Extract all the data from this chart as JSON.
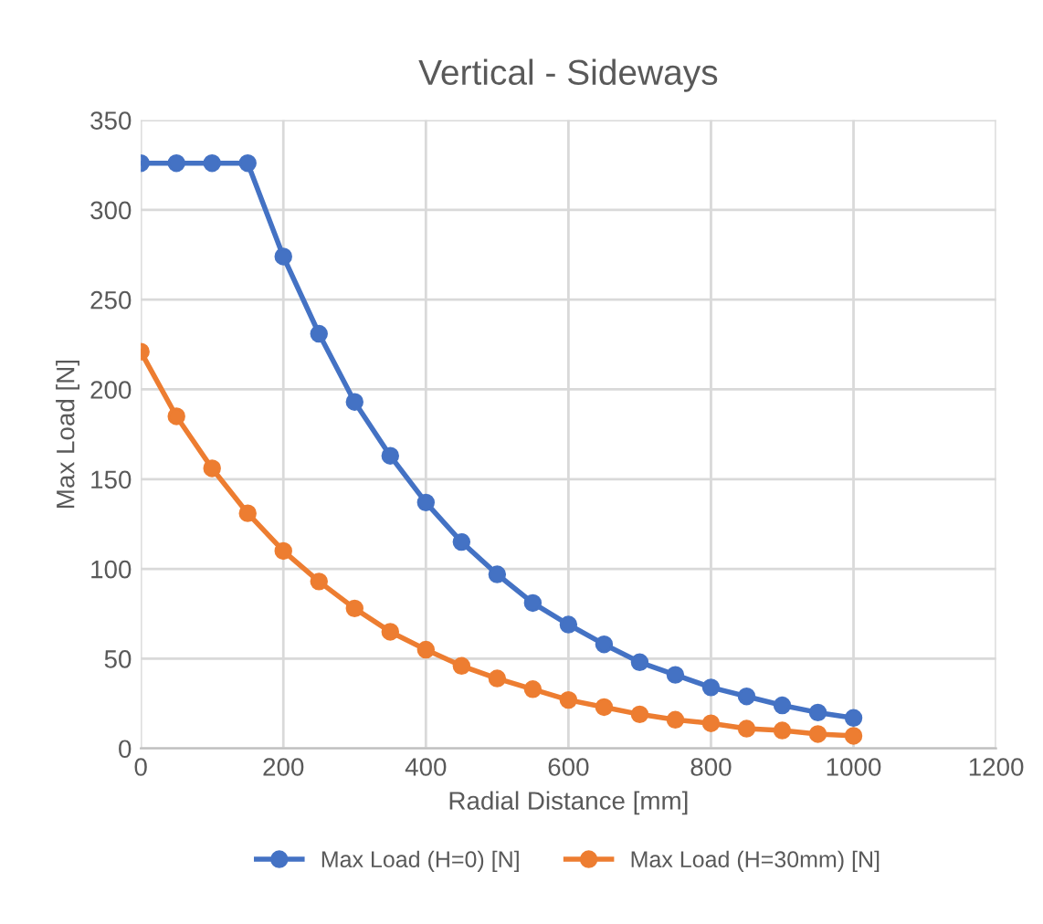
{
  "chart_data": {
    "type": "line",
    "title": "Vertical - Sideways",
    "xlabel": "Radial Distance [mm]",
    "ylabel": "Max Load [N]",
    "x": [
      0,
      50,
      100,
      150,
      200,
      250,
      300,
      350,
      400,
      450,
      500,
      550,
      600,
      650,
      700,
      750,
      800,
      850,
      900,
      950,
      1000
    ],
    "series": [
      {
        "name": "Max Load (H=0) [N]",
        "color": "#4472c4",
        "values": [
          326,
          326,
          326,
          326,
          274,
          231,
          193,
          163,
          137,
          115,
          97,
          81,
          69,
          58,
          48,
          41,
          34,
          29,
          24,
          20,
          17
        ]
      },
      {
        "name": "Max Load (H=30mm) [N]",
        "color": "#ed7d31",
        "values": [
          221,
          185,
          156,
          131,
          110,
          93,
          78,
          65,
          55,
          46,
          39,
          33,
          27,
          23,
          19,
          16,
          14,
          11,
          10,
          8,
          7
        ]
      }
    ],
    "xlim": [
      0,
      1200
    ],
    "xticks": [
      0,
      200,
      400,
      600,
      800,
      1000,
      1200
    ],
    "ylim": [
      0,
      350
    ],
    "yticks": [
      0,
      50,
      100,
      150,
      200,
      250,
      300,
      350
    ],
    "grid": true,
    "legend": "bottom",
    "marker": "circle",
    "line_style": "solid"
  }
}
